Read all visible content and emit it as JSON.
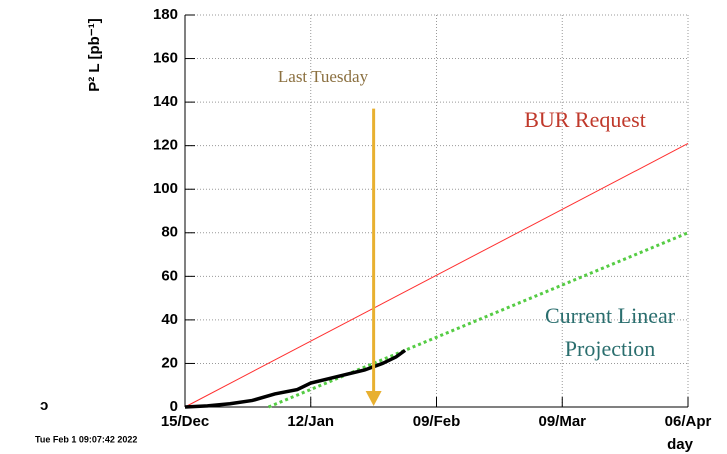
{
  "chart_data": {
    "type": "line",
    "ylabel": "P² L [pb⁻¹]",
    "xlabel": "day",
    "timestamp": "Tue Feb 1 09:07:42 2022",
    "edge_text": "ɔ",
    "xlim": [
      0,
      112
    ],
    "xticks": [
      {
        "value": 0,
        "label": "15/Dec"
      },
      {
        "value": 28,
        "label": "12/Jan"
      },
      {
        "value": 56,
        "label": "09/Feb"
      },
      {
        "value": 84,
        "label": "09/Mar"
      },
      {
        "value": 112,
        "label": "06/Apr"
      }
    ],
    "ylim": [
      0,
      180
    ],
    "yticks": [
      0,
      20,
      40,
      60,
      80,
      100,
      120,
      140,
      160,
      180
    ],
    "grid": true,
    "series": [
      {
        "name": "BUR Request",
        "color": "#ff3030",
        "style": "solid",
        "x": [
          0,
          112
        ],
        "values": [
          0,
          121
        ]
      },
      {
        "name": "Current Linear Projection",
        "color": "#55cc44",
        "style": "dotted",
        "x": [
          18.6,
          112
        ],
        "values": [
          0,
          80
        ]
      },
      {
        "color": "#000000",
        "style": "thick",
        "x": [
          0,
          5,
          10,
          15,
          20,
          25,
          28,
          32,
          36,
          40,
          44,
          47,
          49
        ],
        "values": [
          0,
          0.5,
          1.5,
          3,
          6,
          8,
          11,
          13,
          15,
          17,
          20,
          23,
          26
        ]
      }
    ],
    "annotations": [
      {
        "text": "BUR Request",
        "color": "#c0392b"
      },
      {
        "lines": [
          "Current Linear",
          "Projection"
        ],
        "color": "#2a6e6e"
      },
      {
        "text": "Last Tuesday",
        "color": "#8b7040",
        "x": 42,
        "arrow_from": 137,
        "arrow_color": "#e8b030"
      }
    ]
  }
}
